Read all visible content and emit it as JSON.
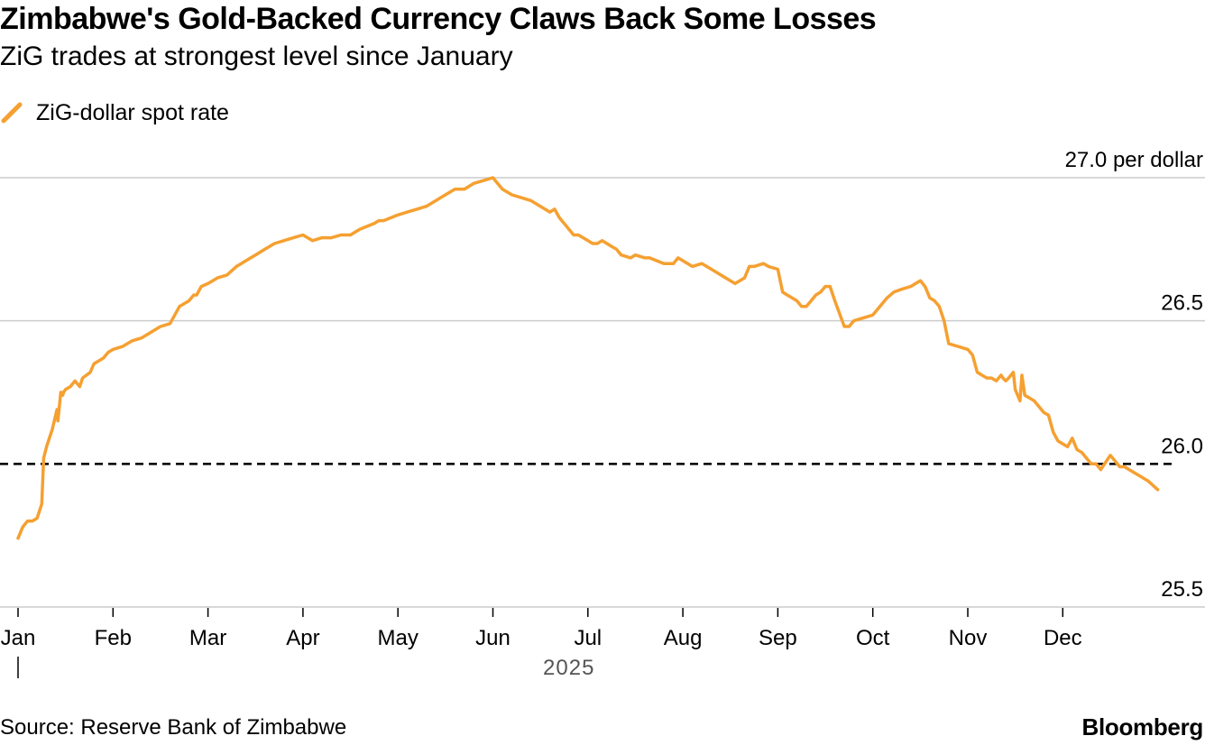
{
  "header": {
    "title": "Zimbabwe's Gold-Backed Currency Claws Back Some Losses",
    "subtitle": "ZiG trades at strongest level since January"
  },
  "footer": {
    "source": "Source: Reserve Bank of Zimbabwe",
    "brand": "Bloomberg"
  },
  "colors": {
    "series": "#f5a031",
    "grid": "#cccccc",
    "reference": "#000000"
  },
  "chart_data": {
    "type": "line",
    "title": "Zimbabwe's Gold-Backed Currency Claws Back Some Losses",
    "subtitle": "ZiG trades at strongest level since January",
    "xlabel": "2025",
    "ylabel": "per dollar",
    "ylim": [
      25.5,
      27.0
    ],
    "yticks": [
      {
        "value": 27.0,
        "label": "27.0 per dollar"
      },
      {
        "value": 26.5,
        "label": "26.5"
      },
      {
        "value": 26.0,
        "label": "26.0"
      },
      {
        "value": 25.5,
        "label": "25.5"
      }
    ],
    "xlim": [
      0,
      12
    ],
    "xticks": [
      {
        "value": 0,
        "label": "Jan"
      },
      {
        "value": 1,
        "label": "Feb"
      },
      {
        "value": 2,
        "label": "Mar"
      },
      {
        "value": 3,
        "label": "Apr"
      },
      {
        "value": 4,
        "label": "May"
      },
      {
        "value": 5,
        "label": "Jun"
      },
      {
        "value": 6,
        "label": "Jul"
      },
      {
        "value": 7,
        "label": "Aug"
      },
      {
        "value": 8,
        "label": "Sep"
      },
      {
        "value": 9,
        "label": "Oct"
      },
      {
        "value": 10,
        "label": "Nov"
      },
      {
        "value": 11,
        "label": "Dec"
      }
    ],
    "year_label": "2025",
    "year_tick_at": 0,
    "x_unit": "months since Jan 1, 2025",
    "reference_line": {
      "value": 26.0,
      "style": "dashed"
    },
    "grid": true,
    "legend_position": "top-left",
    "series": [
      {
        "name": "ZiG-dollar spot rate",
        "x": [
          0,
          0.05,
          0.1,
          0.15,
          0.2,
          0.25,
          0.27,
          0.3,
          0.33,
          0.36,
          0.41,
          0.42,
          0.45,
          0.46,
          0.47,
          0.48,
          0.5,
          0.55,
          0.6,
          0.65,
          0.68,
          0.72,
          0.76,
          0.8,
          0.85,
          0.9,
          0.95,
          1.0,
          1.1,
          1.2,
          1.3,
          1.4,
          1.5,
          1.6,
          1.7,
          1.8,
          1.85,
          1.88,
          1.93,
          2.0,
          2.05,
          2.1,
          2.2,
          2.3,
          2.35,
          2.4,
          2.5,
          2.6,
          2.7,
          2.8,
          2.9,
          3.0,
          3.1,
          3.2,
          3.3,
          3.4,
          3.5,
          3.55,
          3.6,
          3.75,
          3.8,
          3.85,
          4.0,
          4.1,
          4.2,
          4.3,
          4.4,
          4.5,
          4.6,
          4.7,
          4.8,
          4.9,
          5.0,
          5.1,
          5.2,
          5.3,
          5.4,
          5.5,
          5.6,
          5.65,
          5.7,
          5.75,
          5.85,
          5.9,
          6.0,
          6.05,
          6.1,
          6.15,
          6.25,
          6.3,
          6.35,
          6.45,
          6.5,
          6.6,
          6.65,
          6.8,
          6.9,
          6.95,
          7.1,
          7.2,
          7.3,
          7.4,
          7.45,
          7.55,
          7.65,
          7.7,
          7.75,
          7.85,
          7.9,
          8.0,
          8.05,
          8.1,
          8.15,
          8.2,
          8.25,
          8.3,
          8.35,
          8.4,
          8.45,
          8.5,
          8.55,
          8.57,
          8.6,
          8.7,
          8.75,
          8.8,
          9.0,
          9.1,
          9.15,
          9.22,
          9.3,
          9.4,
          9.45,
          9.5,
          9.55,
          9.6,
          9.65,
          9.7,
          9.75,
          9.8,
          9.9,
          10.0,
          10.05,
          10.1,
          10.15,
          10.2,
          10.25,
          10.3,
          10.35,
          10.37,
          10.4,
          10.43,
          10.48,
          10.5,
          10.55,
          10.57,
          10.6,
          10.65,
          10.7,
          10.75,
          10.8,
          10.85,
          10.9,
          10.95,
          11.0,
          11.05,
          11.1,
          11.15,
          11.2,
          11.25,
          11.3,
          11.35,
          11.4,
          11.5,
          11.6,
          11.65,
          11.7,
          11.8,
          11.9,
          12.0
        ],
        "values": [
          25.74,
          25.78,
          25.8,
          25.8,
          25.81,
          25.86,
          26.02,
          26.06,
          26.09,
          26.12,
          26.19,
          26.15,
          26.25,
          26.25,
          26.24,
          26.25,
          26.26,
          26.27,
          26.29,
          26.27,
          26.3,
          26.31,
          26.32,
          26.35,
          26.36,
          26.37,
          26.39,
          26.4,
          26.41,
          26.43,
          26.44,
          26.46,
          26.48,
          26.49,
          26.55,
          26.57,
          26.59,
          26.59,
          26.62,
          26.63,
          26.64,
          26.65,
          26.66,
          26.69,
          26.7,
          26.71,
          26.73,
          26.75,
          26.77,
          26.78,
          26.79,
          26.8,
          26.78,
          26.79,
          26.79,
          26.8,
          26.8,
          26.81,
          26.82,
          26.84,
          26.85,
          26.85,
          26.87,
          26.88,
          26.89,
          26.9,
          26.92,
          26.94,
          26.96,
          26.96,
          26.98,
          26.99,
          27.0,
          26.96,
          26.94,
          26.93,
          26.92,
          26.9,
          26.88,
          26.89,
          26.86,
          26.84,
          26.8,
          26.8,
          26.78,
          26.77,
          26.77,
          26.78,
          26.76,
          26.75,
          26.73,
          26.72,
          26.73,
          26.72,
          26.72,
          26.7,
          26.7,
          26.72,
          26.69,
          26.7,
          26.68,
          26.66,
          26.65,
          26.63,
          26.65,
          26.69,
          26.69,
          26.7,
          26.69,
          26.68,
          26.6,
          26.59,
          26.58,
          26.57,
          26.55,
          26.55,
          26.57,
          26.59,
          26.6,
          26.62,
          26.62,
          26.6,
          26.57,
          26.48,
          26.48,
          26.5,
          26.52,
          26.56,
          26.58,
          26.6,
          26.61,
          26.62,
          26.63,
          26.64,
          26.62,
          26.58,
          26.57,
          26.55,
          26.5,
          26.42,
          26.41,
          26.4,
          26.38,
          26.32,
          26.31,
          26.3,
          26.3,
          26.29,
          26.31,
          26.3,
          26.29,
          26.3,
          26.32,
          26.26,
          26.22,
          26.31,
          26.24,
          26.23,
          26.22,
          26.2,
          26.18,
          26.17,
          26.11,
          26.08,
          26.07,
          26.06,
          26.09,
          26.05,
          26.04,
          26.02,
          26.0,
          26.0,
          25.98,
          26.03,
          25.99,
          25.99,
          25.98,
          25.96,
          25.94,
          25.91
        ]
      }
    ]
  }
}
